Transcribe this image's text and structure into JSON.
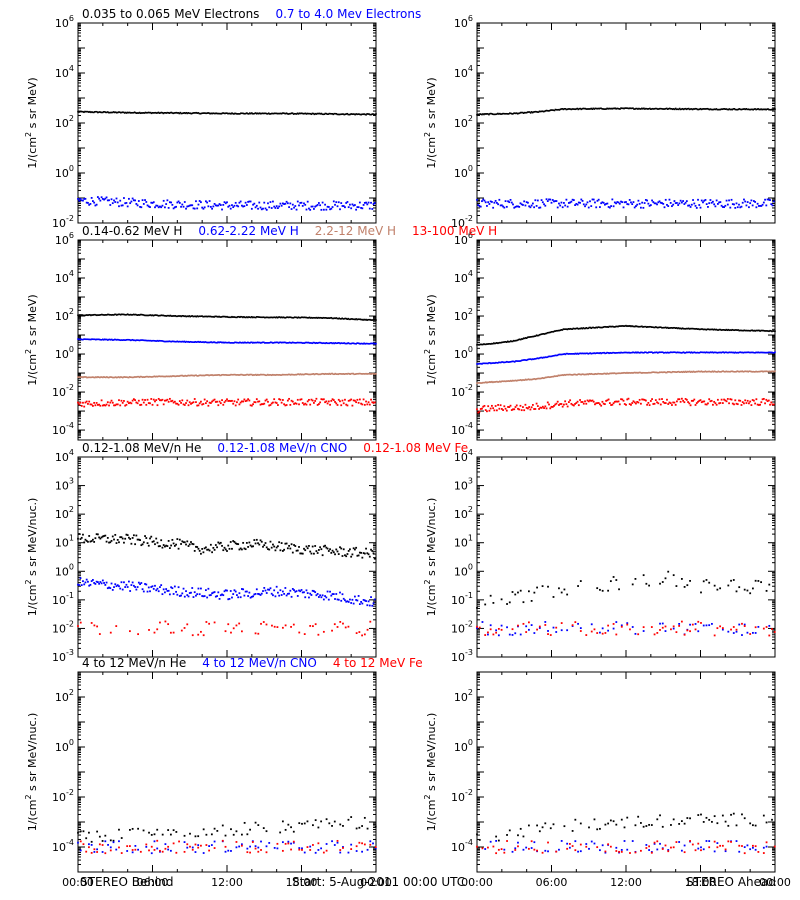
{
  "footer": {
    "left": "STEREO Behind",
    "center": "Start:  5-Aug-2011 00:00 UTC",
    "right": "STEREO Ahead"
  },
  "x_ticks": [
    "00:00",
    "06:00",
    "12:00",
    "18:00",
    "00:00"
  ],
  "colors": {
    "black": "#000000",
    "blue": "#0000ff",
    "tan": "#c0806a",
    "red": "#ff0000"
  },
  "chart_data": [
    {
      "type": "scatter",
      "row": 0,
      "side": "behind",
      "ylabel": "1/(cm² s sr MeV)",
      "yscale": "log",
      "ylim": [
        0.01,
        1000000
      ],
      "y_ticks": [
        {
          "exp": -2,
          "label": "10-2"
        },
        {
          "exp": 0,
          "label": "100"
        },
        {
          "exp": 2,
          "label": "102"
        },
        {
          "exp": 4,
          "label": "104"
        },
        {
          "exp": 6,
          "label": "106"
        }
      ],
      "legend": [
        {
          "label": "0.035 to 0.065 MeV Electrons",
          "color": "#000000"
        },
        {
          "label": "0.7 to 4.0 Mev Electrons",
          "color": "#0000ff"
        }
      ],
      "series": [
        {
          "color": "#000000",
          "style": "line",
          "x": [
            0,
            4,
            8,
            12,
            16,
            20,
            24
          ],
          "y": [
            280,
            260,
            250,
            240,
            240,
            230,
            220
          ]
        },
        {
          "color": "#0000ff",
          "style": "noisy",
          "x": [
            0,
            6,
            12,
            18,
            24
          ],
          "y": [
            0.08,
            0.06,
            0.05,
            0.05,
            0.05
          ]
        }
      ]
    },
    {
      "type": "scatter",
      "row": 0,
      "side": "ahead",
      "ylabel": "1/(cm² s sr MeV)",
      "yscale": "log",
      "ylim": [
        0.01,
        1000000
      ],
      "y_ticks": [
        {
          "exp": -2,
          "label": "10-2"
        },
        {
          "exp": 0,
          "label": "100"
        },
        {
          "exp": 2,
          "label": "102"
        },
        {
          "exp": 4,
          "label": "104"
        },
        {
          "exp": 6,
          "label": "106"
        }
      ],
      "legend": [],
      "series": [
        {
          "color": "#000000",
          "style": "line",
          "x": [
            0,
            3,
            5,
            7,
            12,
            18,
            24
          ],
          "y": [
            220,
            240,
            280,
            360,
            380,
            360,
            350
          ]
        },
        {
          "color": "#0000ff",
          "style": "noisy",
          "x": [
            0,
            6,
            12,
            18,
            24
          ],
          "y": [
            0.06,
            0.06,
            0.06,
            0.06,
            0.06
          ]
        }
      ]
    },
    {
      "type": "scatter",
      "row": 1,
      "side": "behind",
      "ylabel": "1/(cm² s sr MeV)",
      "yscale": "log",
      "ylim": [
        3e-05,
        1000000
      ],
      "y_ticks": [
        {
          "exp": -4,
          "label": "10-4"
        },
        {
          "exp": -2,
          "label": "10-2"
        },
        {
          "exp": 0,
          "label": "100"
        },
        {
          "exp": 2,
          "label": "102"
        },
        {
          "exp": 4,
          "label": "104"
        },
        {
          "exp": 6,
          "label": "106"
        }
      ],
      "legend": [
        {
          "label": "0.14-0.62 MeV H",
          "color": "#000000"
        },
        {
          "label": "0.62-2.22 MeV H",
          "color": "#0000ff"
        },
        {
          "label": "2.2-12 MeV H",
          "color": "#c0806a"
        },
        {
          "label": "13-100 MeV H",
          "color": "#ff0000"
        }
      ],
      "series": [
        {
          "color": "#000000",
          "style": "line",
          "x": [
            0,
            4,
            8,
            12,
            16,
            20,
            24
          ],
          "y": [
            110,
            120,
            100,
            90,
            85,
            80,
            60
          ]
        },
        {
          "color": "#0000ff",
          "style": "line",
          "x": [
            0,
            4,
            8,
            12,
            16,
            20,
            24
          ],
          "y": [
            6,
            5.5,
            4.5,
            4,
            4,
            3.8,
            3.5
          ]
        },
        {
          "color": "#c0806a",
          "style": "line",
          "x": [
            0,
            4,
            8,
            12,
            16,
            20,
            24
          ],
          "y": [
            0.06,
            0.06,
            0.07,
            0.08,
            0.08,
            0.09,
            0.09
          ]
        },
        {
          "color": "#ff0000",
          "style": "noisy",
          "x": [
            0,
            6,
            12,
            18,
            24
          ],
          "y": [
            0.0025,
            0.003,
            0.0028,
            0.003,
            0.0028
          ]
        }
      ]
    },
    {
      "type": "scatter",
      "row": 1,
      "side": "ahead",
      "ylabel": "1/(cm² s sr MeV)",
      "yscale": "log",
      "ylim": [
        3e-05,
        1000000
      ],
      "y_ticks": [
        {
          "exp": -4,
          "label": "10-4"
        },
        {
          "exp": -2,
          "label": "10-2"
        },
        {
          "exp": 0,
          "label": "100"
        },
        {
          "exp": 2,
          "label": "102"
        },
        {
          "exp": 4,
          "label": "104"
        },
        {
          "exp": 6,
          "label": "106"
        }
      ],
      "legend": [],
      "series": [
        {
          "color": "#000000",
          "style": "line",
          "x": [
            0,
            2,
            3,
            5,
            7,
            12,
            18,
            24
          ],
          "y": [
            3,
            4,
            5,
            10,
            20,
            30,
            20,
            16
          ]
        },
        {
          "color": "#0000ff",
          "style": "line",
          "x": [
            0,
            3,
            5,
            7,
            12,
            18,
            24
          ],
          "y": [
            0.3,
            0.4,
            0.6,
            1.0,
            1.2,
            1.2,
            1.2
          ]
        },
        {
          "color": "#c0806a",
          "style": "line",
          "x": [
            0,
            3,
            5,
            7,
            12,
            18,
            24
          ],
          "y": [
            0.03,
            0.04,
            0.05,
            0.08,
            0.1,
            0.12,
            0.12
          ]
        },
        {
          "color": "#ff0000",
          "style": "noisy",
          "x": [
            0,
            2,
            4,
            7,
            12,
            18,
            24
          ],
          "y": [
            0.0012,
            0.0015,
            0.0015,
            0.0025,
            0.003,
            0.003,
            0.003
          ]
        }
      ]
    },
    {
      "type": "scatter",
      "row": 2,
      "side": "behind",
      "ylabel": "1/(cm² s sr MeV/nuc.)",
      "yscale": "log",
      "ylim": [
        0.001,
        10000
      ],
      "y_ticks": [
        {
          "exp": -3,
          "label": "10-3"
        },
        {
          "exp": -2,
          "label": "10-2"
        },
        {
          "exp": -1,
          "label": "10-1"
        },
        {
          "exp": 0,
          "label": "100"
        },
        {
          "exp": 1,
          "label": "101"
        },
        {
          "exp": 2,
          "label": "102"
        },
        {
          "exp": 3,
          "label": "103"
        },
        {
          "exp": 4,
          "label": "104"
        }
      ],
      "legend": [
        {
          "label": "0.12-1.08 MeV/n He",
          "color": "#000000"
        },
        {
          "label": "0.12-1.08 MeV/n CNO",
          "color": "#0000ff"
        },
        {
          "label": "0.12-1.08 MeV Fe",
          "color": "#ff0000"
        }
      ],
      "series": [
        {
          "color": "#000000",
          "style": "noisy",
          "x": [
            0,
            4,
            8,
            10,
            14,
            18,
            24
          ],
          "y": [
            14,
            13,
            9,
            6,
            9,
            6,
            4
          ]
        },
        {
          "color": "#0000ff",
          "style": "noisy",
          "x": [
            0,
            4,
            8,
            12,
            16,
            20,
            24
          ],
          "y": [
            0.4,
            0.3,
            0.2,
            0.15,
            0.2,
            0.15,
            0.08
          ]
        },
        {
          "color": "#ff0000",
          "style": "sparse",
          "x": [
            0,
            6,
            12,
            18,
            24
          ],
          "y": [
            0.01,
            0.01,
            0.01,
            0.01,
            0.01
          ]
        }
      ]
    },
    {
      "type": "scatter",
      "row": 2,
      "side": "ahead",
      "ylabel": "1/(cm² s sr MeV/nuc.)",
      "yscale": "log",
      "ylim": [
        0.001,
        10000
      ],
      "y_ticks": [
        {
          "exp": -3,
          "label": "10-3"
        },
        {
          "exp": -2,
          "label": "10-2"
        },
        {
          "exp": -1,
          "label": "10-1"
        },
        {
          "exp": 0,
          "label": "100"
        },
        {
          "exp": 1,
          "label": "101"
        },
        {
          "exp": 2,
          "label": "102"
        },
        {
          "exp": 3,
          "label": "103"
        },
        {
          "exp": 4,
          "label": "104"
        }
      ],
      "legend": [],
      "series": [
        {
          "color": "#000000",
          "style": "sparse",
          "x": [
            0,
            4,
            8,
            12,
            15,
            18,
            24
          ],
          "y": [
            0.08,
            0.15,
            0.3,
            0.4,
            0.6,
            0.3,
            0.3
          ]
        },
        {
          "color": "#0000ff",
          "style": "sparse",
          "x": [
            0,
            6,
            12,
            18,
            24
          ],
          "y": [
            0.01,
            0.01,
            0.01,
            0.01,
            0.01
          ]
        },
        {
          "color": "#ff0000",
          "style": "sparse",
          "x": [
            8,
            14,
            20
          ],
          "y": [
            0.01,
            0.01,
            0.01
          ]
        }
      ]
    },
    {
      "type": "scatter",
      "row": 3,
      "side": "behind",
      "ylabel": "1/(cm² s sr MeV/nuc.)",
      "yscale": "log",
      "ylim": [
        1e-05,
        1000
      ],
      "y_ticks": [
        {
          "exp": -4,
          "label": "10-4"
        },
        {
          "exp": -2,
          "label": "10-2"
        },
        {
          "exp": 0,
          "label": "100"
        },
        {
          "exp": 2,
          "label": "102"
        }
      ],
      "legend": [
        {
          "label": "4 to 12 MeV/n He",
          "color": "#000000"
        },
        {
          "label": "4 to 12 MeV/n CNO",
          "color": "#0000ff"
        },
        {
          "label": "4 to 12 MeV Fe",
          "color": "#ff0000"
        }
      ],
      "series": [
        {
          "color": "#000000",
          "style": "sparse",
          "x": [
            0,
            6,
            12,
            18,
            24
          ],
          "y": [
            0.00025,
            0.00035,
            0.0005,
            0.0007,
            0.001
          ]
        },
        {
          "color": "#0000ff",
          "style": "sparse",
          "x": [
            0,
            6,
            12,
            18,
            24
          ],
          "y": [
            0.0001,
            0.0001,
            0.0001,
            0.0001,
            0.0001
          ]
        },
        {
          "color": "#ff0000",
          "style": "sparse",
          "x": [
            10,
            16,
            22
          ],
          "y": [
            0.0001,
            0.0001,
            0.0001
          ]
        }
      ]
    },
    {
      "type": "scatter",
      "row": 3,
      "side": "ahead",
      "ylabel": "1/(cm² s sr MeV/nuc.)",
      "yscale": "log",
      "ylim": [
        1e-05,
        1000
      ],
      "y_ticks": [
        {
          "exp": -4,
          "label": "10-4"
        },
        {
          "exp": -2,
          "label": "10-2"
        },
        {
          "exp": 0,
          "label": "100"
        },
        {
          "exp": 2,
          "label": "102"
        }
      ],
      "legend": [],
      "series": [
        {
          "color": "#000000",
          "style": "sparse",
          "x": [
            0,
            4,
            8,
            12,
            18,
            24
          ],
          "y": [
            0.0002,
            0.0004,
            0.0008,
            0.001,
            0.0012,
            0.0013
          ]
        },
        {
          "color": "#0000ff",
          "style": "sparse",
          "x": [
            0,
            6,
            12,
            18,
            24
          ],
          "y": [
            0.0001,
            0.0001,
            0.0001,
            0.0001,
            0.0001
          ]
        },
        {
          "color": "#ff0000",
          "style": "sparse",
          "x": [
            8,
            14,
            20
          ],
          "y": [
            0.0001,
            0.0001,
            0.0001
          ]
        }
      ]
    }
  ]
}
